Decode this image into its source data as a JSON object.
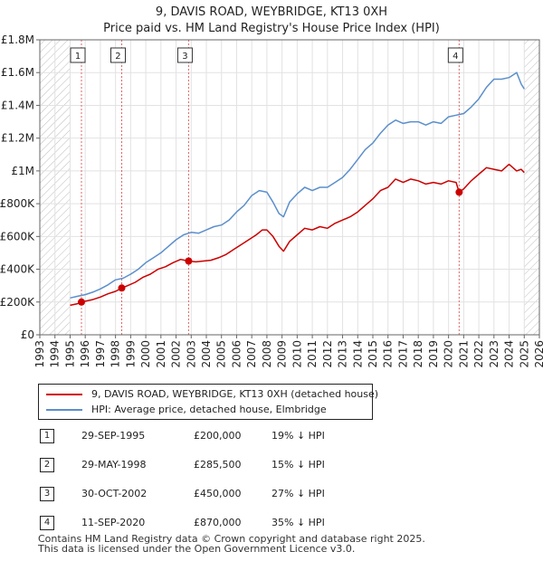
{
  "chart_data": {
    "type": "line",
    "title": "9, DAVIS ROAD, WEYBRIDGE, KT13 0XH",
    "subtitle": "Price paid vs. HM Land Registry's House Price Index (HPI)",
    "xlim": [
      1993,
      2026
    ],
    "ylim": [
      0,
      1800000
    ],
    "x_ticks": [
      "1993",
      "1994",
      "1995",
      "1996",
      "1997",
      "1998",
      "1999",
      "2000",
      "2001",
      "2002",
      "2003",
      "2004",
      "2005",
      "2006",
      "2007",
      "2008",
      "2009",
      "2010",
      "2011",
      "2012",
      "2013",
      "2014",
      "2015",
      "2016",
      "2017",
      "2018",
      "2019",
      "2020",
      "2021",
      "2022",
      "2023",
      "2024",
      "2025",
      "2026"
    ],
    "y_ticks": [
      {
        "value": 0,
        "label": "£0"
      },
      {
        "value": 200000,
        "label": "£200K"
      },
      {
        "value": 400000,
        "label": "£400K"
      },
      {
        "value": 600000,
        "label": "£600K"
      },
      {
        "value": 800000,
        "label": "£800K"
      },
      {
        "value": 1000000,
        "label": "£1M"
      },
      {
        "value": 1200000,
        "label": "£1.2M"
      },
      {
        "value": 1400000,
        "label": "£1.4M"
      },
      {
        "value": 1600000,
        "label": "£1.6M"
      },
      {
        "value": 1800000,
        "label": "£1.8M"
      }
    ],
    "hatched_ranges": [
      [
        1993,
        1995.0
      ],
      [
        2025.0,
        2026
      ]
    ],
    "series": [
      {
        "name": "9, DAVIS ROAD, WEYBRIDGE, KT13 0XH (detached house)",
        "color": "#cc0000",
        "x": [
          1995.0,
          1995.5,
          1995.75,
          1996.0,
          1996.5,
          1997.0,
          1997.5,
          1998.0,
          1998.42,
          1998.8,
          1999.3,
          1999.8,
          2000.3,
          2000.8,
          2001.3,
          2001.8,
          2002.3,
          2002.83,
          2003.3,
          2003.8,
          2004.3,
          2004.8,
          2005.3,
          2005.8,
          2006.3,
          2006.8,
          2007.3,
          2007.7,
          2008.0,
          2008.4,
          2008.8,
          2009.1,
          2009.5,
          2010.0,
          2010.5,
          2011.0,
          2011.5,
          2012.0,
          2012.5,
          2013.0,
          2013.5,
          2014.0,
          2014.5,
          2015.0,
          2015.5,
          2016.0,
          2016.5,
          2017.0,
          2017.5,
          2018.0,
          2018.5,
          2019.0,
          2019.5,
          2020.0,
          2020.5,
          2020.7,
          2021.0,
          2021.5,
          2022.0,
          2022.5,
          2023.0,
          2023.5,
          2024.0,
          2024.5,
          2024.8,
          2025.0
        ],
        "values": [
          180000,
          190000,
          200000,
          205000,
          215000,
          230000,
          250000,
          265000,
          285500,
          300000,
          320000,
          350000,
          370000,
          400000,
          415000,
          440000,
          460000,
          450000,
          445000,
          450000,
          455000,
          470000,
          490000,
          520000,
          550000,
          580000,
          610000,
          640000,
          640000,
          600000,
          540000,
          510000,
          570000,
          610000,
          650000,
          640000,
          660000,
          650000,
          680000,
          700000,
          720000,
          750000,
          790000,
          830000,
          880000,
          900000,
          950000,
          930000,
          950000,
          940000,
          920000,
          930000,
          920000,
          940000,
          930000,
          870000,
          890000,
          940000,
          980000,
          1020000,
          1010000,
          1000000,
          1040000,
          1000000,
          1010000,
          990000
        ]
      },
      {
        "name": "HPI: Average price, detached house, Elmbridge",
        "color": "#5b8fcc",
        "x": [
          1995.0,
          1995.5,
          1996.0,
          1996.5,
          1997.0,
          1997.5,
          1998.0,
          1998.5,
          1999.0,
          1999.5,
          2000.0,
          2000.5,
          2001.0,
          2001.5,
          2002.0,
          2002.5,
          2003.0,
          2003.5,
          2004.0,
          2004.5,
          2005.0,
          2005.5,
          2006.0,
          2006.5,
          2007.0,
          2007.5,
          2008.0,
          2008.4,
          2008.8,
          2009.1,
          2009.5,
          2010.0,
          2010.5,
          2011.0,
          2011.5,
          2012.0,
          2012.5,
          2013.0,
          2013.5,
          2014.0,
          2014.5,
          2015.0,
          2015.5,
          2016.0,
          2016.5,
          2017.0,
          2017.5,
          2018.0,
          2018.5,
          2019.0,
          2019.5,
          2020.0,
          2020.5,
          2021.0,
          2021.5,
          2022.0,
          2022.5,
          2023.0,
          2023.5,
          2024.0,
          2024.5,
          2024.8,
          2025.0
        ],
        "values": [
          225000,
          235000,
          245000,
          260000,
          280000,
          305000,
          335000,
          345000,
          370000,
          400000,
          440000,
          470000,
          500000,
          540000,
          580000,
          610000,
          625000,
          620000,
          640000,
          660000,
          670000,
          700000,
          750000,
          790000,
          850000,
          880000,
          870000,
          810000,
          740000,
          720000,
          810000,
          860000,
          900000,
          880000,
          900000,
          900000,
          930000,
          960000,
          1010000,
          1070000,
          1130000,
          1170000,
          1230000,
          1280000,
          1310000,
          1290000,
          1300000,
          1300000,
          1280000,
          1300000,
          1290000,
          1330000,
          1340000,
          1350000,
          1390000,
          1440000,
          1510000,
          1560000,
          1560000,
          1570000,
          1600000,
          1530000,
          1500000
        ]
      }
    ],
    "sales": [
      {
        "num": "1",
        "x": 1995.75,
        "value": 200000
      },
      {
        "num": "2",
        "x": 1998.41,
        "value": 285500
      },
      {
        "num": "3",
        "x": 2002.83,
        "value": 450000
      },
      {
        "num": "4",
        "x": 2020.7,
        "value": 870000
      }
    ]
  },
  "legend": {
    "property_label": "9, DAVIS ROAD, WEYBRIDGE, KT13 0XH (detached house)",
    "hpi_label": "HPI: Average price, detached house, Elmbridge",
    "property_color": "#cc0000",
    "hpi_color": "#5b8fcc"
  },
  "sales_table": [
    {
      "num": "1",
      "date": "29-SEP-1995",
      "price": "£200,000",
      "delta": "19% ↓ HPI"
    },
    {
      "num": "2",
      "date": "29-MAY-1998",
      "price": "£285,500",
      "delta": "15% ↓ HPI"
    },
    {
      "num": "3",
      "date": "30-OCT-2002",
      "price": "£450,000",
      "delta": "27% ↓ HPI"
    },
    {
      "num": "4",
      "date": "11-SEP-2020",
      "price": "£870,000",
      "delta": "35% ↓ HPI"
    }
  ],
  "footer": {
    "line1": "Contains HM Land Registry data © Crown copyright and database right 2025.",
    "line2": "This data is licensed under the Open Government Licence v3.0."
  }
}
